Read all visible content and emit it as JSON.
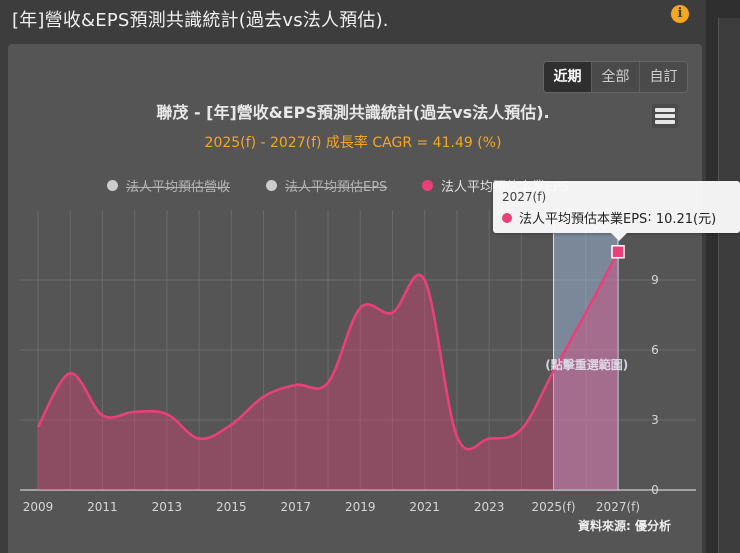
{
  "header": {
    "title": "[年]營收&EPS預測共識統計(過去vs法人預估).",
    "info_icon": "info-icon"
  },
  "period_tabs": [
    {
      "label": "近期",
      "active": true
    },
    {
      "label": "全部",
      "active": false
    },
    {
      "label": "自訂",
      "active": false
    }
  ],
  "source_text": "資料來源: 優分析",
  "tooltip": {
    "header": "2027(f)",
    "series": "法人平均預估本業EPS",
    "value": "10.21(元)"
  },
  "chart_data": {
    "type": "area",
    "title": "聯茂 - [年]營收&EPS預測共識統計(過去vs法人預估).",
    "subtitle": "2025(f) - 2027(f) 成長率 CAGR = 41.49 (%)",
    "legend": [
      {
        "name": "法人平均預估營收",
        "color": "#cccccc",
        "visible": false
      },
      {
        "name": "法人平均預估EPS",
        "color": "#cccccc",
        "visible": false
      },
      {
        "name": "法人平均預估本業EPS",
        "color": "#e8407a",
        "visible": true
      }
    ],
    "x": [
      "2009",
      "2010",
      "2011",
      "2012",
      "2013",
      "2014",
      "2015",
      "2016",
      "2017",
      "2018",
      "2019",
      "2020",
      "2021",
      "2022",
      "2023",
      "2024",
      "2025(f)",
      "2026(f)",
      "2027(f)"
    ],
    "x_tick_labels": [
      "2009",
      "2011",
      "2013",
      "2015",
      "2017",
      "2019",
      "2021",
      "2023",
      "2025(f)",
      "2027(f)"
    ],
    "series": [
      {
        "name": "法人平均預估本業EPS",
        "color": "#e8407a",
        "values": [
          2.7,
          5.0,
          3.2,
          3.35,
          3.25,
          2.2,
          2.8,
          4.0,
          4.5,
          4.6,
          7.8,
          7.6,
          9.0,
          2.3,
          2.2,
          2.6,
          5.1,
          7.6,
          10.21
        ]
      }
    ],
    "y_right_ticks": [
      0,
      3,
      6,
      9
    ],
    "ylim": [
      0,
      12
    ],
    "selection_range": [
      "2025(f)",
      "2027(f)"
    ],
    "selection_label": "(點擊重選範圍)",
    "highlight_point": "2027(f)",
    "grid": true
  }
}
